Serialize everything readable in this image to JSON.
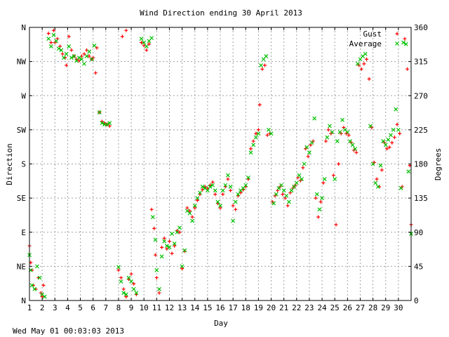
{
  "chart_data": {
    "type": "scatter",
    "title": "Wind Direction ending 30 April 2013",
    "xlabel": "Day",
    "ylabel_left": "Direction",
    "ylabel_right": "Degrees",
    "xlim": [
      1,
      31
    ],
    "ylim": [
      0,
      360
    ],
    "x_ticks": [
      1,
      2,
      3,
      4,
      5,
      6,
      7,
      8,
      9,
      10,
      11,
      12,
      13,
      14,
      15,
      16,
      17,
      18,
      19,
      20,
      21,
      22,
      23,
      24,
      25,
      26,
      27,
      28,
      29,
      30
    ],
    "left_ticks": [
      {
        "value": 0,
        "label": "N"
      },
      {
        "value": 45,
        "label": "NE"
      },
      {
        "value": 90,
        "label": "E"
      },
      {
        "value": 135,
        "label": "SE"
      },
      {
        "value": 180,
        "label": "S"
      },
      {
        "value": 225,
        "label": "SW"
      },
      {
        "value": 270,
        "label": "W"
      },
      {
        "value": 315,
        "label": "NW"
      },
      {
        "value": 360,
        "label": "N"
      }
    ],
    "right_ticks": [
      0,
      45,
      90,
      135,
      180,
      225,
      270,
      315,
      360
    ],
    "grid": true,
    "legend_position": "top-right",
    "colors": {
      "gust": "#ff0000",
      "average": "#00c000"
    },
    "series": [
      {
        "name": "Gust",
        "marker": "plus",
        "points": [
          [
            1.0,
            72
          ],
          [
            1.1,
            50
          ],
          [
            1.2,
            40
          ],
          [
            1.3,
            20
          ],
          [
            1.5,
            15
          ],
          [
            1.7,
            30
          ],
          [
            1.9,
            10
          ],
          [
            2.0,
            5
          ],
          [
            2.1,
            20
          ],
          [
            2.5,
            352
          ],
          [
            2.7,
            340
          ],
          [
            2.9,
            356
          ],
          [
            3.0,
            340
          ],
          [
            3.2,
            345
          ],
          [
            3.4,
            335
          ],
          [
            3.6,
            325
          ],
          [
            3.8,
            320
          ],
          [
            3.9,
            310
          ],
          [
            4.1,
            348
          ],
          [
            4.3,
            330
          ],
          [
            4.5,
            322
          ],
          [
            4.7,
            318
          ],
          [
            4.9,
            316
          ],
          [
            5.1,
            322
          ],
          [
            5.3,
            325
          ],
          [
            5.5,
            330
          ],
          [
            5.7,
            322
          ],
          [
            5.9,
            318
          ],
          [
            6.0,
            320
          ],
          [
            6.2,
            300
          ],
          [
            6.3,
            333
          ],
          [
            6.5,
            248
          ],
          [
            6.7,
            236
          ],
          [
            6.9,
            234
          ],
          [
            7.1,
            232
          ],
          [
            7.3,
            230
          ],
          [
            8.0,
            40
          ],
          [
            8.2,
            30
          ],
          [
            8.4,
            15
          ],
          [
            8.6,
            5
          ],
          [
            8.8,
            28
          ],
          [
            9.0,
            35
          ],
          [
            9.2,
            22
          ],
          [
            9.4,
            8
          ],
          [
            8.3,
            348
          ],
          [
            8.6,
            356
          ],
          [
            9.8,
            340
          ],
          [
            10.0,
            336
          ],
          [
            10.2,
            330
          ],
          [
            10.4,
            338
          ],
          [
            10.6,
            120
          ],
          [
            10.8,
            95
          ],
          [
            10.9,
            60
          ],
          [
            11.0,
            30
          ],
          [
            11.2,
            10
          ],
          [
            11.4,
            70
          ],
          [
            11.6,
            82
          ],
          [
            11.8,
            68
          ],
          [
            12.0,
            78
          ],
          [
            12.2,
            62
          ],
          [
            12.4,
            72
          ],
          [
            12.6,
            92
          ],
          [
            12.8,
            90
          ],
          [
            13.0,
            42
          ],
          [
            13.2,
            65
          ],
          [
            13.4,
            122
          ],
          [
            13.6,
            118
          ],
          [
            13.8,
            110
          ],
          [
            14.0,
            122
          ],
          [
            14.2,
            132
          ],
          [
            14.4,
            140
          ],
          [
            14.6,
            146
          ],
          [
            14.8,
            150
          ],
          [
            15.0,
            148
          ],
          [
            15.2,
            152
          ],
          [
            15.4,
            156
          ],
          [
            15.6,
            140
          ],
          [
            15.8,
            128
          ],
          [
            16.0,
            122
          ],
          [
            16.2,
            140
          ],
          [
            16.4,
            150
          ],
          [
            16.6,
            160
          ],
          [
            16.8,
            145
          ],
          [
            17.0,
            125
          ],
          [
            17.2,
            120
          ],
          [
            17.4,
            138
          ],
          [
            17.6,
            142
          ],
          [
            17.8,
            146
          ],
          [
            18.0,
            150
          ],
          [
            18.2,
            160
          ],
          [
            18.4,
            200
          ],
          [
            18.6,
            210
          ],
          [
            18.8,
            220
          ],
          [
            19.0,
            225
          ],
          [
            19.1,
            258
          ],
          [
            19.3,
            305
          ],
          [
            19.5,
            310
          ],
          [
            19.7,
            218
          ],
          [
            19.9,
            220
          ],
          [
            20.1,
            130
          ],
          [
            20.3,
            138
          ],
          [
            20.5,
            145
          ],
          [
            20.7,
            150
          ],
          [
            20.9,
            140
          ],
          [
            21.1,
            135
          ],
          [
            21.3,
            125
          ],
          [
            21.5,
            142
          ],
          [
            21.7,
            148
          ],
          [
            21.9,
            152
          ],
          [
            22.1,
            162
          ],
          [
            22.3,
            158
          ],
          [
            22.5,
            175
          ],
          [
            22.7,
            200
          ],
          [
            22.9,
            190
          ],
          [
            23.1,
            205
          ],
          [
            23.3,
            210
          ],
          [
            23.5,
            135
          ],
          [
            23.7,
            110
          ],
          [
            23.9,
            130
          ],
          [
            24.1,
            155
          ],
          [
            24.3,
            210
          ],
          [
            24.5,
            225
          ],
          [
            24.7,
            220
          ],
          [
            24.9,
            165
          ],
          [
            25.1,
            100
          ],
          [
            25.3,
            180
          ],
          [
            25.5,
            220
          ],
          [
            25.7,
            228
          ],
          [
            25.9,
            220
          ],
          [
            26.1,
            218
          ],
          [
            26.3,
            208
          ],
          [
            26.5,
            198
          ],
          [
            26.7,
            195
          ],
          [
            26.9,
            310
          ],
          [
            27.1,
            305
          ],
          [
            27.3,
            312
          ],
          [
            27.5,
            318
          ],
          [
            27.7,
            292
          ],
          [
            27.9,
            228
          ],
          [
            28.1,
            182
          ],
          [
            28.3,
            160
          ],
          [
            28.5,
            150
          ],
          [
            28.7,
            172
          ],
          [
            28.9,
            208
          ],
          [
            29.1,
            200
          ],
          [
            29.3,
            202
          ],
          [
            29.5,
            208
          ],
          [
            29.7,
            215
          ],
          [
            29.9,
            232
          ],
          [
            30.1,
            220
          ],
          [
            30.3,
            150
          ],
          [
            30.5,
            345
          ],
          [
            30.7,
            305
          ],
          [
            30.9,
            178
          ],
          [
            31.0,
            100
          ]
        ]
      },
      {
        "name": "Average",
        "marker": "cross",
        "points": [
          [
            1.0,
            60
          ],
          [
            1.1,
            40
          ],
          [
            1.2,
            20
          ],
          [
            1.4,
            15
          ],
          [
            1.6,
            45
          ],
          [
            1.8,
            30
          ],
          [
            2.0,
            8
          ],
          [
            2.2,
            5
          ],
          [
            2.5,
            345
          ],
          [
            2.7,
            335
          ],
          [
            2.9,
            350
          ],
          [
            3.1,
            342
          ],
          [
            3.3,
            332
          ],
          [
            3.5,
            330
          ],
          [
            3.7,
            320
          ],
          [
            3.9,
            325
          ],
          [
            4.1,
            335
          ],
          [
            4.3,
            320
          ],
          [
            4.5,
            322
          ],
          [
            4.7,
            316
          ],
          [
            4.9,
            320
          ],
          [
            5.1,
            318
          ],
          [
            5.3,
            312
          ],
          [
            5.5,
            322
          ],
          [
            5.7,
            328
          ],
          [
            5.9,
            318
          ],
          [
            6.1,
            336
          ],
          [
            6.5,
            248
          ],
          [
            6.7,
            234
          ],
          [
            6.9,
            232
          ],
          [
            7.1,
            232
          ],
          [
            7.3,
            234
          ],
          [
            8.0,
            44
          ],
          [
            8.2,
            25
          ],
          [
            8.4,
            10
          ],
          [
            8.6,
            8
          ],
          [
            8.8,
            30
          ],
          [
            9.0,
            25
          ],
          [
            9.2,
            15
          ],
          [
            9.4,
            10
          ],
          [
            9.8,
            345
          ],
          [
            10.0,
            340
          ],
          [
            10.2,
            335
          ],
          [
            10.4,
            342
          ],
          [
            10.6,
            346
          ],
          [
            10.7,
            110
          ],
          [
            10.9,
            80
          ],
          [
            11.0,
            40
          ],
          [
            11.2,
            15
          ],
          [
            11.4,
            58
          ],
          [
            11.6,
            78
          ],
          [
            11.8,
            72
          ],
          [
            12.0,
            70
          ],
          [
            12.2,
            88
          ],
          [
            12.4,
            75
          ],
          [
            12.6,
            90
          ],
          [
            12.8,
            96
          ],
          [
            13.0,
            45
          ],
          [
            13.2,
            66
          ],
          [
            13.4,
            118
          ],
          [
            13.6,
            115
          ],
          [
            13.8,
            105
          ],
          [
            14.0,
            125
          ],
          [
            14.2,
            135
          ],
          [
            14.4,
            142
          ],
          [
            14.6,
            150
          ],
          [
            14.8,
            148
          ],
          [
            15.0,
            145
          ],
          [
            15.2,
            150
          ],
          [
            15.4,
            152
          ],
          [
            15.6,
            145
          ],
          [
            15.8,
            130
          ],
          [
            16.0,
            125
          ],
          [
            16.2,
            145
          ],
          [
            16.4,
            152
          ],
          [
            16.6,
            165
          ],
          [
            16.8,
            150
          ],
          [
            17.0,
            105
          ],
          [
            17.2,
            130
          ],
          [
            17.4,
            140
          ],
          [
            17.6,
            145
          ],
          [
            17.8,
            148
          ],
          [
            18.0,
            152
          ],
          [
            18.2,
            162
          ],
          [
            18.4,
            195
          ],
          [
            18.6,
            205
          ],
          [
            18.8,
            215
          ],
          [
            19.0,
            220
          ],
          [
            19.2,
            310
          ],
          [
            19.4,
            318
          ],
          [
            19.6,
            322
          ],
          [
            19.8,
            225
          ],
          [
            20.0,
            220
          ],
          [
            20.2,
            128
          ],
          [
            20.4,
            140
          ],
          [
            20.6,
            148
          ],
          [
            20.8,
            152
          ],
          [
            21.0,
            145
          ],
          [
            21.2,
            138
          ],
          [
            21.4,
            130
          ],
          [
            21.6,
            145
          ],
          [
            21.8,
            150
          ],
          [
            22.0,
            155
          ],
          [
            22.2,
            165
          ],
          [
            22.4,
            160
          ],
          [
            22.6,
            180
          ],
          [
            22.8,
            202
          ],
          [
            23.0,
            195
          ],
          [
            23.2,
            208
          ],
          [
            23.4,
            240
          ],
          [
            23.6,
            140
          ],
          [
            23.8,
            120
          ],
          [
            24.0,
            135
          ],
          [
            24.2,
            160
          ],
          [
            24.4,
            215
          ],
          [
            24.6,
            230
          ],
          [
            24.8,
            222
          ],
          [
            25.0,
            160
          ],
          [
            25.2,
            210
          ],
          [
            25.4,
            222
          ],
          [
            25.6,
            238
          ],
          [
            25.8,
            225
          ],
          [
            26.0,
            222
          ],
          [
            26.2,
            210
          ],
          [
            26.4,
            205
          ],
          [
            26.6,
            200
          ],
          [
            26.8,
            312
          ],
          [
            27.0,
            318
          ],
          [
            27.2,
            322
          ],
          [
            27.4,
            325
          ],
          [
            27.8,
            230
          ],
          [
            28.0,
            180
          ],
          [
            28.2,
            155
          ],
          [
            28.4,
            150
          ],
          [
            28.6,
            178
          ],
          [
            28.8,
            210
          ],
          [
            29.0,
            205
          ],
          [
            29.2,
            212
          ],
          [
            29.4,
            218
          ],
          [
            29.6,
            225
          ],
          [
            29.8,
            252
          ],
          [
            30.0,
            225
          ],
          [
            30.2,
            148
          ],
          [
            30.4,
            340
          ],
          [
            30.6,
            338
          ],
          [
            30.8,
            170
          ],
          [
            31.0,
            88
          ]
        ]
      }
    ]
  },
  "footer": {
    "timestamp": "Wed May 01 00:03:03 2013"
  }
}
